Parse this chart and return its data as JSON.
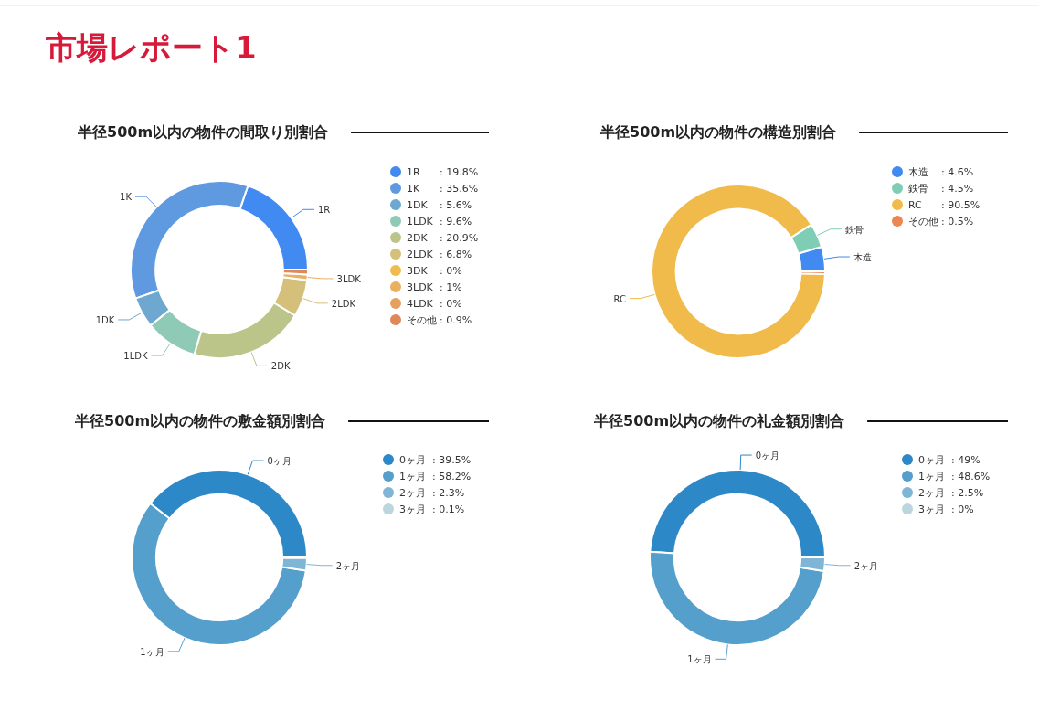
{
  "chart_data": [
    {
      "type": "donut",
      "annotations": [
        "市場レポート1"
      ],
      "title": "半径500m以内の物件の間取り別割合",
      "legend": "right",
      "categories": [
        "1R",
        "1K",
        "1DK",
        "1LDK",
        "2DK",
        "2LDK",
        "3DK",
        "3LDK",
        "4LDK",
        "その他"
      ],
      "values": [
        19.8,
        35.6,
        5.6,
        9.6,
        20.9,
        6.8,
        0,
        1,
        0,
        0.9
      ],
      "colors": [
        "#418af2",
        "#5f9ae0",
        "#6ea8d0",
        "#8ecab5",
        "#bbc58a",
        "#d4c07a",
        "#f0bc52",
        "#e9b060",
        "#e5a060",
        "#e0885a"
      ],
      "value_labels": [
        ": 19.8%",
        ": 35.6%",
        ": 5.6%",
        ": 9.6%",
        ": 20.9%",
        ": 6.8%",
        ": 0%",
        ": 1%",
        ": 0%",
        ": 0.9%"
      ]
    },
    {
      "type": "donut",
      "title": "半径500m以内の物件の構造別割合",
      "legend": "right",
      "categories": [
        "木造",
        "鉄骨",
        "RC",
        "その他"
      ],
      "values": [
        4.6,
        4.5,
        90.5,
        0.5
      ],
      "colors": [
        "#418af2",
        "#80cdb5",
        "#f1bb4c",
        "#ec8652"
      ],
      "value_labels": [
        ": 4.6%",
        ": 4.5%",
        ": 90.5%",
        ": 0.5%"
      ]
    },
    {
      "type": "donut",
      "title": "半径500m以内の物件の敷金額別割合",
      "legend": "right",
      "categories": [
        "0ヶ月",
        "1ヶ月",
        "2ヶ月",
        "3ヶ月"
      ],
      "values": [
        39.5,
        58.2,
        2.3,
        0.1
      ],
      "colors": [
        "#2d88c8",
        "#559fcc",
        "#7fb5d5",
        "#bcd6dd"
      ],
      "value_labels": [
        ": 39.5%",
        ": 58.2%",
        ": 2.3%",
        ": 0.1%"
      ]
    },
    {
      "type": "donut",
      "title": "半径500m以内の物件の礼金額別割合",
      "legend": "right",
      "categories": [
        "0ヶ月",
        "1ヶ月",
        "2ヶ月",
        "3ヶ月"
      ],
      "values": [
        49,
        48.6,
        2.5,
        0
      ],
      "colors": [
        "#2d88c8",
        "#559fcc",
        "#7fb5d5",
        "#bcd6dd"
      ],
      "value_labels": [
        ": 49%",
        ": 48.6%",
        ": 2.5%",
        ": 0%"
      ]
    }
  ]
}
